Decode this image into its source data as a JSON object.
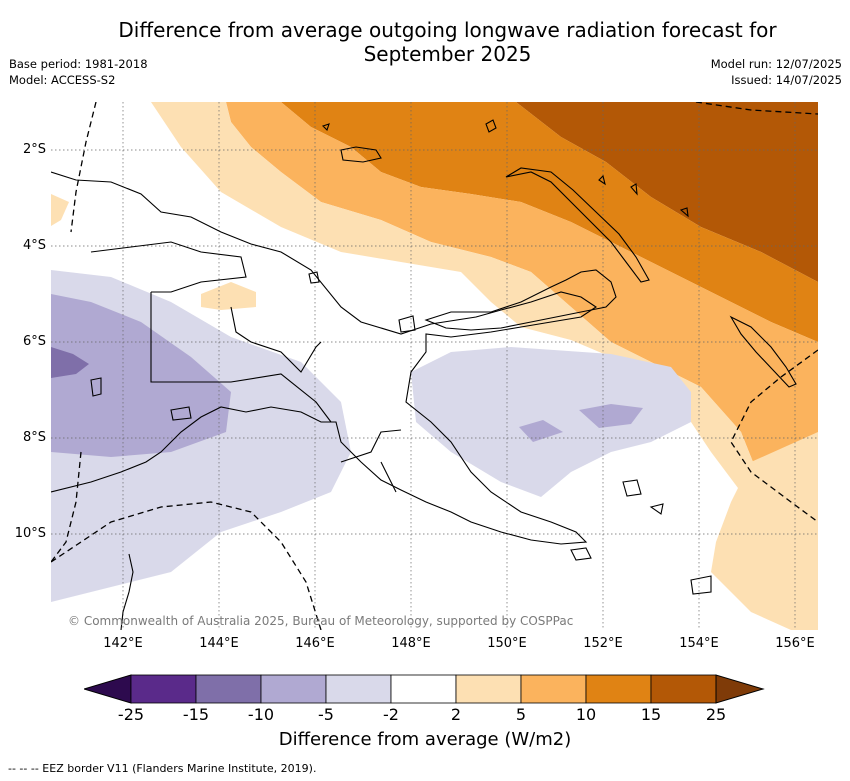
{
  "title": {
    "line1": "Difference from average outgoing longwave radiation forecast for",
    "line2": "September 2025"
  },
  "meta_left": {
    "base_period": "Base period: 1981-2018",
    "model": "Model: ACCESS-S2"
  },
  "meta_right": {
    "model_run": "Model run: 12/07/2025",
    "issued": "Issued: 14/07/2025"
  },
  "map": {
    "lon_range": [
      140.5,
      156.5
    ],
    "lat_range": [
      -12.0,
      -1.0
    ],
    "x_ticks": [
      "142°E",
      "144°E",
      "146°E",
      "148°E",
      "150°E",
      "152°E",
      "154°E",
      "156°E"
    ],
    "y_ticks": [
      "2°S",
      "4°S",
      "6°S",
      "8°S",
      "10°S"
    ],
    "copyright": "© Commonwealth of Australia 2025, Bureau of Meteorology, supported by COSPPac"
  },
  "colorbar": {
    "label": "Difference from average (W/m2)",
    "ticks": [
      "-25",
      "-15",
      "-10",
      "-5",
      "-2",
      "2",
      "5",
      "10",
      "15",
      "25"
    ],
    "colors": [
      "#2d0a4e",
      "#5a2a8a",
      "#7f6fa9",
      "#b0a9d2",
      "#d9d9ea",
      "#ffffff",
      "#fde0b3",
      "#fbb35d",
      "#e08314",
      "#b35806",
      "#7f3b08"
    ]
  },
  "footnote": "-- -- -- EEZ border V11 (Flanders Marine Institute, 2019)."
}
